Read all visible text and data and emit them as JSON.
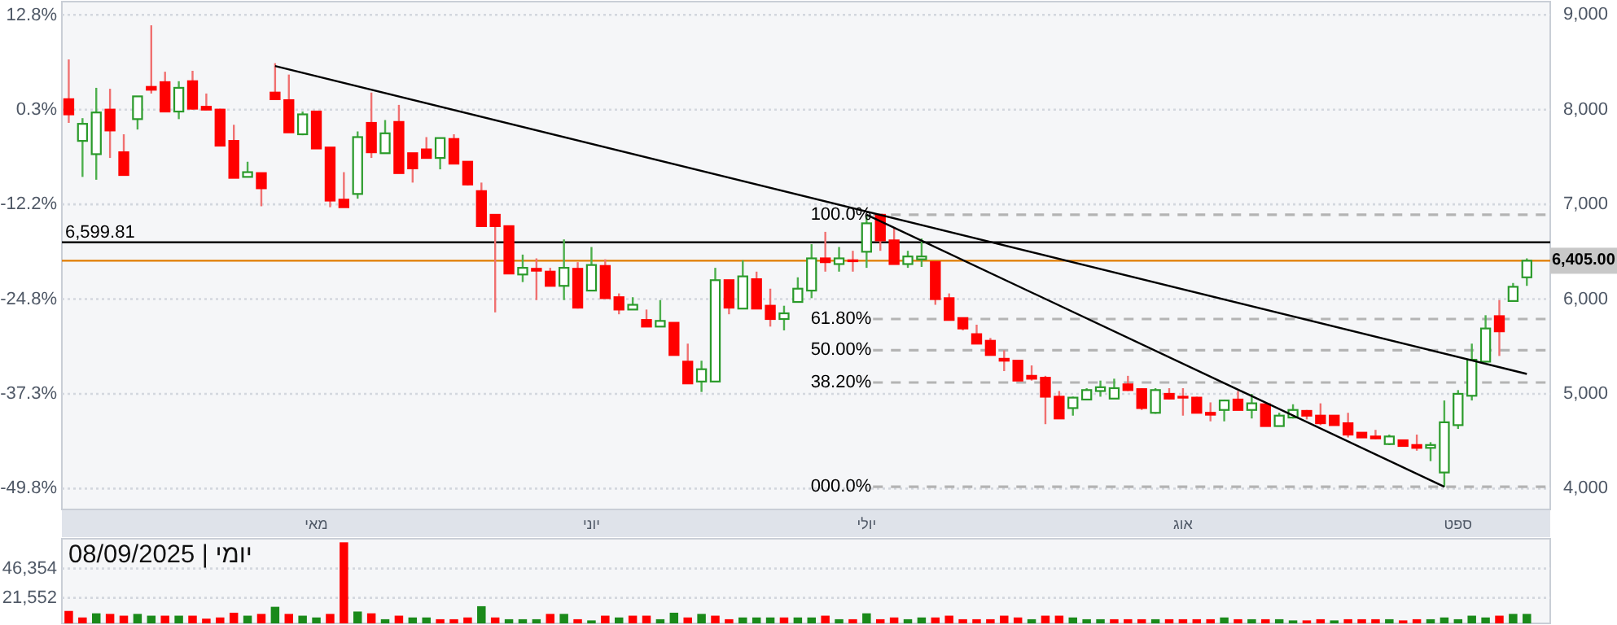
{
  "chart_data": [
    {
      "type": "candlestick",
      "title": "יומי | 08/09/2025",
      "categories": [
        null,
        null,
        null,
        null,
        null,
        null,
        null,
        null,
        null,
        null,
        null,
        null,
        null,
        null,
        null,
        null,
        null,
        null,
        "מאי",
        null,
        null,
        null,
        null,
        null,
        null,
        null,
        null,
        null,
        null,
        null,
        null,
        null,
        null,
        null,
        null,
        null,
        null,
        null,
        "יוני",
        null,
        null,
        null,
        null,
        null,
        null,
        null,
        null,
        null,
        null,
        null,
        null,
        null,
        null,
        null,
        null,
        null,
        null,
        null,
        "יולי",
        null,
        null,
        null,
        null,
        null,
        null,
        null,
        null,
        null,
        null,
        null,
        null,
        null,
        null,
        null,
        null,
        null,
        null,
        null,
        null,
        null,
        null,
        "אוג",
        null,
        null,
        null,
        null,
        null,
        null,
        null,
        null,
        null,
        null,
        null,
        null,
        null,
        null,
        null,
        null,
        null,
        null,
        null,
        "ספט",
        null,
        null,
        null,
        null,
        null
      ],
      "ohlc": [
        [
          8110,
          8530,
          7860,
          7950
        ],
        [
          7670,
          7910,
          7290,
          7850
        ],
        [
          7530,
          8230,
          7260,
          7970
        ],
        [
          8000,
          8220,
          7490,
          7780
        ],
        [
          7550,
          7740,
          7310,
          7310
        ],
        [
          7900,
          8140,
          7790,
          8140
        ],
        [
          8240,
          8890,
          8170,
          8210
        ],
        [
          8290,
          8400,
          7980,
          7980
        ],
        [
          7980,
          8300,
          7900,
          8230
        ],
        [
          8300,
          8410,
          8000,
          8010
        ],
        [
          8030,
          8170,
          8000,
          8000
        ],
        [
          8000,
          8010,
          7620,
          7620
        ],
        [
          7670,
          7840,
          7280,
          7280
        ],
        [
          7290,
          7450,
          7290,
          7340
        ],
        [
          7330,
          7330,
          6980,
          7170
        ],
        [
          8180,
          8490,
          8110,
          8110
        ],
        [
          8100,
          8370,
          7760,
          7760
        ],
        [
          7740,
          7980,
          7730,
          7950
        ],
        [
          7980,
          7980,
          7590,
          7590
        ],
        [
          7600,
          7600,
          6970,
          7040
        ],
        [
          7050,
          7340,
          6970,
          6970
        ],
        [
          7110,
          7770,
          7060,
          7710
        ],
        [
          7860,
          8180,
          7490,
          7550
        ],
        [
          7540,
          7890,
          7540,
          7750
        ],
        [
          7870,
          8050,
          7330,
          7330
        ],
        [
          7540,
          7540,
          7230,
          7380
        ],
        [
          7580,
          7710,
          7490,
          7490
        ],
        [
          7490,
          7700,
          7370,
          7700
        ],
        [
          7690,
          7740,
          7430,
          7430
        ],
        [
          7450,
          7450,
          7200,
          7210
        ],
        [
          7140,
          7230,
          6770,
          6770
        ],
        [
          6890,
          6890,
          5860,
          6770
        ],
        [
          6770,
          6770,
          6270,
          6270
        ],
        [
          6260,
          6470,
          6180,
          6330
        ],
        [
          6320,
          6430,
          5990,
          6300
        ],
        [
          6290,
          6330,
          6140,
          6140
        ],
        [
          6140,
          6630,
          5990,
          6330
        ],
        [
          6320,
          6390,
          5900,
          5910
        ],
        [
          6090,
          6550,
          6090,
          6360
        ],
        [
          6350,
          6420,
          6010,
          6010
        ],
        [
          6020,
          6060,
          5840,
          5890
        ],
        [
          5890,
          6020,
          5890,
          5940
        ],
        [
          5780,
          5890,
          5710,
          5710
        ],
        [
          5710,
          5990,
          5710,
          5770
        ],
        [
          5750,
          5750,
          5410,
          5410
        ],
        [
          5340,
          5530,
          5110,
          5110
        ],
        [
          5130,
          5350,
          5020,
          5260
        ],
        [
          5130,
          6330,
          5130,
          6200
        ],
        [
          6200,
          6200,
          5840,
          5910
        ],
        [
          5900,
          6410,
          5900,
          6240
        ],
        [
          6210,
          6290,
          5900,
          5900
        ],
        [
          5930,
          6110,
          5710,
          5790
        ],
        [
          5790,
          5930,
          5670,
          5850
        ],
        [
          5970,
          6230,
          5970,
          6110
        ],
        [
          6090,
          6580,
          6010,
          6430
        ],
        [
          6430,
          6710,
          6290,
          6390
        ],
        [
          6370,
          6550,
          6290,
          6430
        ],
        [
          6410,
          6510,
          6290,
          6400
        ],
        [
          6500,
          6890,
          6330,
          6800
        ],
        [
          6890,
          6890,
          6510,
          6620
        ],
        [
          6620,
          6750,
          6370,
          6370
        ],
        [
          6370,
          6510,
          6330,
          6450
        ],
        [
          6420,
          6640,
          6340,
          6450
        ],
        [
          6390,
          6390,
          5940,
          6000
        ],
        [
          6010,
          6060,
          5780,
          5780
        ],
        [
          5800,
          5800,
          5670,
          5690
        ],
        [
          5630,
          5730,
          5530,
          5530
        ],
        [
          5560,
          5590,
          5410,
          5410
        ],
        [
          5370,
          5460,
          5240,
          5350
        ],
        [
          5350,
          5350,
          5140,
          5140
        ],
        [
          5190,
          5300,
          5140,
          5160
        ],
        [
          5170,
          5190,
          4680,
          4970
        ],
        [
          4970,
          5030,
          4740,
          4740
        ],
        [
          4850,
          4970,
          4770,
          4960
        ],
        [
          4940,
          5060,
          4940,
          5040
        ],
        [
          5030,
          5140,
          4970,
          5070
        ],
        [
          4950,
          5160,
          4950,
          5060
        ],
        [
          5100,
          5190,
          5030,
          5040
        ],
        [
          5050,
          5060,
          4830,
          4850
        ],
        [
          4800,
          5060,
          4790,
          5040
        ],
        [
          5000,
          5060,
          4940,
          4950
        ],
        [
          4970,
          5060,
          4770,
          4960
        ],
        [
          4960,
          4970,
          4800,
          4800
        ],
        [
          4800,
          4910,
          4710,
          4780
        ],
        [
          4830,
          4940,
          4710,
          4930
        ],
        [
          4940,
          5030,
          4830,
          4830
        ],
        [
          4830,
          5000,
          4740,
          4900
        ],
        [
          4890,
          4900,
          4660,
          4660
        ],
        [
          4660,
          4800,
          4660,
          4770
        ],
        [
          4750,
          4890,
          4740,
          4830
        ],
        [
          4820,
          4830,
          4730,
          4770
        ],
        [
          4770,
          4900,
          4670,
          4690
        ],
        [
          4770,
          4770,
          4670,
          4670
        ],
        [
          4690,
          4800,
          4540,
          4570
        ],
        [
          4590,
          4590,
          4540,
          4540
        ],
        [
          4550,
          4620,
          4520,
          4530
        ],
        [
          4470,
          4570,
          4460,
          4550
        ],
        [
          4510,
          4510,
          4450,
          4450
        ],
        [
          4460,
          4570,
          4400,
          4430
        ],
        [
          4430,
          4490,
          4290,
          4460
        ],
        [
          4170,
          4930,
          4020,
          4700
        ],
        [
          4670,
          5040,
          4630,
          5000
        ],
        [
          4980,
          5530,
          4930,
          5360
        ],
        [
          5340,
          5830,
          5330,
          5690
        ],
        [
          5820,
          5990,
          5400,
          5660
        ],
        [
          5980,
          6170,
          5980,
          6130
        ],
        [
          6230,
          6430,
          6140,
          6405
        ]
      ],
      "series": [
        {
          "type": "line",
          "color": "#000000",
          "values": [
            null,
            null,
            null,
            null,
            null,
            null,
            null,
            null,
            null,
            null,
            null,
            null,
            null,
            null,
            null,
            8460,
            null,
            null,
            null,
            null,
            null,
            null,
            null,
            null,
            null,
            null,
            null,
            null,
            null,
            null,
            null,
            null,
            null,
            null,
            null,
            null,
            null,
            null,
            null,
            null,
            null,
            null,
            null,
            null,
            null,
            null,
            null,
            null,
            null,
            null,
            null,
            null,
            null,
            null,
            null,
            null,
            null,
            null,
            null,
            null,
            null,
            null,
            null,
            null,
            null,
            null,
            null,
            null,
            null,
            null,
            null,
            null,
            null,
            null,
            null,
            null,
            null,
            null,
            null,
            null,
            null,
            null,
            null,
            null,
            null,
            null,
            null,
            null,
            null,
            null,
            null,
            null,
            null,
            null,
            null,
            null,
            null,
            null,
            null,
            null,
            null,
            null,
            null,
            null,
            null,
            null,
            5210
          ]
        },
        {
          "type": "line",
          "color": "#000000",
          "values": [
            null,
            null,
            null,
            null,
            null,
            null,
            null,
            null,
            null,
            null,
            null,
            null,
            null,
            null,
            null,
            null,
            null,
            null,
            null,
            null,
            null,
            null,
            null,
            null,
            null,
            null,
            null,
            null,
            null,
            null,
            null,
            null,
            null,
            null,
            null,
            null,
            null,
            null,
            null,
            null,
            null,
            null,
            null,
            null,
            null,
            null,
            null,
            null,
            null,
            null,
            null,
            null,
            null,
            null,
            null,
            null,
            null,
            null,
            6890,
            null,
            null,
            null,
            null,
            null,
            null,
            null,
            null,
            null,
            null,
            null,
            null,
            null,
            null,
            null,
            null,
            null,
            null,
            null,
            null,
            null,
            null,
            null,
            null,
            null,
            null,
            null,
            null,
            null,
            null,
            null,
            null,
            null,
            null,
            null,
            null,
            null,
            null,
            null,
            null,
            null,
            4020,
            null,
            null,
            null,
            null,
            null,
            null
          ]
        }
      ],
      "ylim": [
        3780,
        9140
      ],
      "yticks": [
        {
          "value": 4000,
          "label": "4,000"
        },
        {
          "value": 5000,
          "label": "5,000"
        },
        {
          "value": 6000,
          "label": "6,000"
        },
        {
          "value": 7000,
          "label": "7,000"
        },
        {
          "value": 8000,
          "label": "8,000"
        },
        {
          "value": 9000,
          "label": "9,000"
        }
      ],
      "y2lim": [
        -52.6,
        14.6
      ],
      "y2ticks": [
        {
          "value": -49.8,
          "label": "-49.8%"
        },
        {
          "value": -37.3,
          "label": "-37.3%"
        },
        {
          "value": -24.8,
          "label": "-24.8%"
        },
        {
          "value": -12.2,
          "label": "-12.2%"
        },
        {
          "value": 0.3,
          "label": "0.3%"
        },
        {
          "value": 12.8,
          "label": "12.8%"
        }
      ],
      "grid": "y",
      "ref_lines": [
        {
          "axis": "y",
          "value": 6599.81,
          "label": "6,599.81",
          "color": "#000000"
        },
        {
          "axis": "y",
          "value": 6405,
          "label": "6,405.00",
          "color": "#e07b00"
        },
        {
          "axis": "y",
          "value": 6890,
          "color": "#b4b4b4",
          "line_style": "dashed"
        },
        {
          "axis": "y",
          "value": 5790,
          "color": "#b4b4b4",
          "line_style": "dashed"
        },
        {
          "axis": "y",
          "value": 5460,
          "color": "#b4b4b4",
          "line_style": "dashed"
        },
        {
          "axis": "y",
          "value": 5120,
          "color": "#b4b4b4",
          "line_style": "dashed"
        },
        {
          "axis": "y",
          "value": 4020,
          "color": "#b4b4b4",
          "line_style": "dashed"
        }
      ],
      "annotations": [
        "100.0%",
        "61.80%",
        "50.00%",
        "38.20%",
        "000.0%"
      ]
    },
    {
      "type": "bar",
      "tick_labels": "y",
      "categories": [
        null,
        null,
        null,
        null,
        null,
        null,
        null,
        null,
        null,
        null,
        null,
        null,
        null,
        null,
        null,
        null,
        null,
        null,
        null,
        null,
        null,
        null,
        null,
        null,
        null,
        null,
        null,
        null,
        null,
        null,
        null,
        null,
        null,
        null,
        null,
        null,
        null,
        null,
        null,
        null,
        null,
        null,
        null,
        null,
        null,
        null,
        null,
        null,
        null,
        null,
        null,
        null,
        null,
        null,
        null,
        null,
        null,
        null,
        null,
        null,
        null,
        null,
        null,
        null,
        null,
        null,
        null,
        null,
        null,
        null,
        null,
        null,
        null,
        null,
        null,
        null,
        null,
        null,
        null,
        null,
        null,
        null,
        null,
        null,
        null,
        null,
        null,
        null,
        null,
        null,
        null,
        null,
        null,
        null,
        null,
        null,
        null,
        null,
        null,
        null,
        null,
        null,
        null,
        null,
        null,
        null,
        null
      ],
      "values": [
        10500,
        5000,
        8500,
        8000,
        6500,
        8000,
        6500,
        6500,
        6500,
        6500,
        4000,
        5000,
        9000,
        6500,
        8000,
        14000,
        8000,
        6500,
        5000,
        8000,
        68500,
        10000,
        8500,
        3500,
        6500,
        5000,
        5000,
        3500,
        3500,
        5000,
        14500,
        5000,
        3500,
        3500,
        3500,
        8000,
        8000,
        3500,
        2500,
        6500,
        5000,
        6500,
        6500,
        3500,
        9000,
        5000,
        8000,
        6500,
        3500,
        5000,
        5000,
        5000,
        5000,
        5000,
        5000,
        6500,
        3500,
        3500,
        8500,
        3500,
        5000,
        3500,
        5000,
        5000,
        6500,
        3500,
        3500,
        3500,
        6500,
        5000,
        3500,
        6500,
        6500,
        5000,
        3500,
        3500,
        3500,
        3500,
        3500,
        3500,
        3500,
        3500,
        3500,
        3500,
        5000,
        3500,
        3500,
        3500,
        3500,
        2500,
        2500,
        3500,
        2500,
        3500,
        3500,
        3500,
        3500,
        2500,
        3500,
        3500,
        5000,
        3500,
        6500,
        5000,
        6500,
        8000,
        8000
      ],
      "colors": [
        "#ff0000",
        "#ff0000",
        "#1a8a1a",
        "#ff0000",
        "#ff0000",
        "#1a8a1a",
        "#1a8a1a",
        "#ff0000",
        "#1a8a1a",
        "#ff0000",
        "#ff0000",
        "#ff0000",
        "#ff0000",
        "#1a8a1a",
        "#ff0000",
        "#1a8a1a",
        "#ff0000",
        "#1a8a1a",
        "#1a8a1a",
        "#ff0000",
        "#ff0000",
        "#1a8a1a",
        "#ff0000",
        "#1a8a1a",
        "#ff0000",
        "#1a8a1a",
        "#1a8a1a",
        "#ff0000",
        "#ff0000",
        "#ff0000",
        "#1a8a1a",
        "#ff0000",
        "#1a8a1a",
        "#1a8a1a",
        "#1a8a1a",
        "#ff0000",
        "#1a8a1a",
        "#ff0000",
        "#1a8a1a",
        "#ff0000",
        "#1a8a1a",
        "#ff0000",
        "#ff0000",
        "#1a8a1a",
        "#1a8a1a",
        "#ff0000",
        "#1a8a1a",
        "#ff0000",
        "#ff0000",
        "#1a8a1a",
        "#1a8a1a",
        "#1a8a1a",
        "#ff0000",
        "#1a8a1a",
        "#1a8a1a",
        "#ff0000",
        "#1a8a1a",
        "#ff0000",
        "#1a8a1a",
        "#ff0000",
        "#ff0000",
        "#1a8a1a",
        "#1a8a1a",
        "#ff0000",
        "#ff0000",
        "#ff0000",
        "#ff0000",
        "#ff0000",
        "#ff0000",
        "#ff0000",
        "#1a8a1a",
        "#ff0000",
        "#ff0000",
        "#1a8a1a",
        "#1a8a1a",
        "#1a8a1a",
        "#ff0000",
        "#ff0000",
        "#ff0000",
        "#1a8a1a",
        "#ff0000",
        "#ff0000",
        "#ff0000",
        "#ff0000",
        "#1a8a1a",
        "#ff0000",
        "#1a8a1a",
        "#ff0000",
        "#1a8a1a",
        "#1a8a1a",
        "#ff0000",
        "#ff0000",
        "#1a8a1a",
        "#ff0000",
        "#ff0000",
        "#ff0000",
        "#1a8a1a",
        "#ff0000",
        "#ff0000",
        "#1a8a1a",
        "#1a8a1a",
        "#1a8a1a",
        "#1a8a1a",
        "#1a8a1a",
        "#ff0000",
        "#1a8a1a",
        "#1a8a1a"
      ],
      "ylim": [
        0,
        71500
      ],
      "yticks": [
        {
          "value": 21552,
          "label": "21,552"
        },
        {
          "value": 46354,
          "label": "46,354"
        }
      ],
      "grid": "y"
    }
  ]
}
